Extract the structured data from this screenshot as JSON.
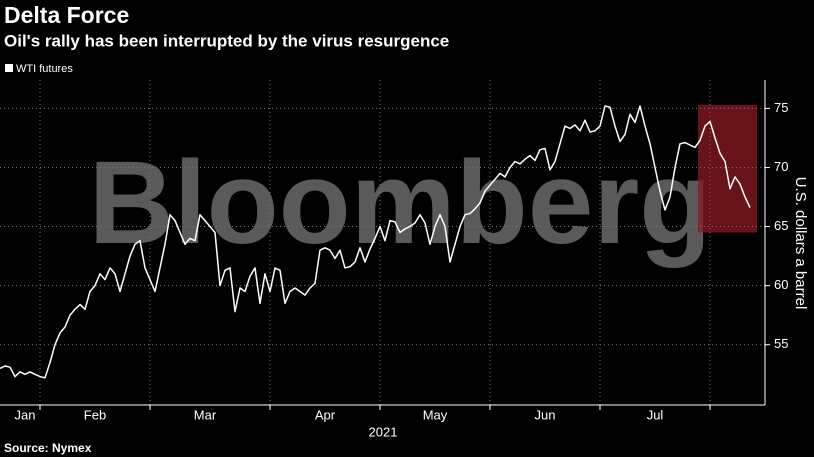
{
  "chart_data": {
    "type": "line",
    "title": "Delta Force",
    "subtitle": "Oil's rally has been interrupted by the virus resurgence",
    "watermark": "Bloomberg",
    "source": "Source: Nymex",
    "x_axis_label": "2021",
    "y_axis_label": "U.S. dollars a barrel",
    "categories": [
      null,
      null,
      null,
      null,
      null,
      "Jan",
      null,
      null,
      null,
      null,
      null,
      null,
      null,
      null,
      null,
      null,
      null,
      null,
      null,
      "Feb",
      null,
      null,
      null,
      null,
      null,
      null,
      null,
      null,
      null,
      null,
      null,
      null,
      null,
      null,
      null,
      null,
      null,
      null,
      null,
      null,
      null,
      "Mar",
      null,
      null,
      null,
      null,
      null,
      null,
      null,
      null,
      null,
      null,
      null,
      null,
      null,
      null,
      null,
      null,
      null,
      null,
      null,
      null,
      null,
      null,
      null,
      "Apr",
      null,
      null,
      null,
      null,
      null,
      null,
      null,
      null,
      null,
      null,
      null,
      null,
      null,
      null,
      null,
      null,
      null,
      null,
      null,
      null,
      null,
      "May",
      null,
      null,
      null,
      null,
      null,
      null,
      null,
      null,
      null,
      null,
      null,
      null,
      null,
      null,
      null,
      null,
      null,
      null,
      null,
      null,
      null,
      "Jun",
      null,
      null,
      null,
      null,
      null,
      null,
      null,
      null,
      null,
      null,
      null,
      null,
      null,
      null,
      null,
      null,
      null,
      null,
      null,
      null,
      null,
      "Jul",
      null,
      null,
      null,
      null,
      null,
      null,
      null,
      null,
      null,
      null,
      null,
      null,
      null,
      null,
      null,
      null,
      null,
      null,
      null
    ],
    "series": [
      {
        "name": "WTI futures",
        "color": "#ffffff",
        "values": [
          53,
          53.2,
          53.1,
          52.3,
          52.7,
          52.5,
          52.7,
          52.5,
          52.3,
          52.2,
          53.5,
          55,
          56,
          56.5,
          57.5,
          58,
          58.4,
          58,
          59.5,
          60,
          61,
          60.5,
          61.5,
          61,
          59.5,
          61,
          62.5,
          63.5,
          63.8,
          61.5,
          60.5,
          59.5,
          61.5,
          63.5,
          66,
          65.5,
          64.5,
          63.5,
          64,
          63.8,
          66,
          65.5,
          65,
          64.5,
          60,
          61.3,
          61.5,
          57.8,
          59.8,
          59.5,
          60.8,
          61.5,
          58.5,
          61,
          59.5,
          61.5,
          61.3,
          58.5,
          59.5,
          59.8,
          59.5,
          59.2,
          59.8,
          60.2,
          63,
          63.2,
          63,
          62.3,
          63,
          61.5,
          61.6,
          62,
          63.2,
          62,
          63.1,
          64,
          65,
          63.8,
          65.5,
          65.4,
          64.5,
          64.8,
          65,
          65.3,
          66,
          65.3,
          63.5,
          65,
          66,
          65,
          62,
          63.5,
          65,
          66,
          66.1,
          66.5,
          67,
          68,
          68.5,
          69,
          69.5,
          69.2,
          70,
          70.5,
          70.3,
          70.7,
          71,
          70.6,
          71.5,
          71.6,
          69.8,
          70.5,
          72,
          73.5,
          73.3,
          73.6,
          73.1,
          74,
          73,
          73.1,
          73.5,
          75.2,
          75.1,
          73.5,
          72.2,
          72.8,
          74.5,
          73.8,
          75.2,
          73.5,
          72,
          70,
          68,
          66.4,
          67.5,
          70,
          72,
          72.1,
          71.9,
          71.7,
          72.3,
          73.5,
          73.9,
          72.5,
          71.2,
          70.5,
          68.2,
          69.2,
          68.6,
          67.5,
          66.6
        ]
      }
    ],
    "ylim": [
      49.9,
      77.4
    ],
    "yticks": [
      55,
      60,
      65,
      70,
      75
    ],
    "grid": true,
    "highlight": {
      "from": 139.6,
      "to": 151.4,
      "ylim": [
        64.5,
        75.3
      ],
      "color": "#8b1a22"
    }
  }
}
